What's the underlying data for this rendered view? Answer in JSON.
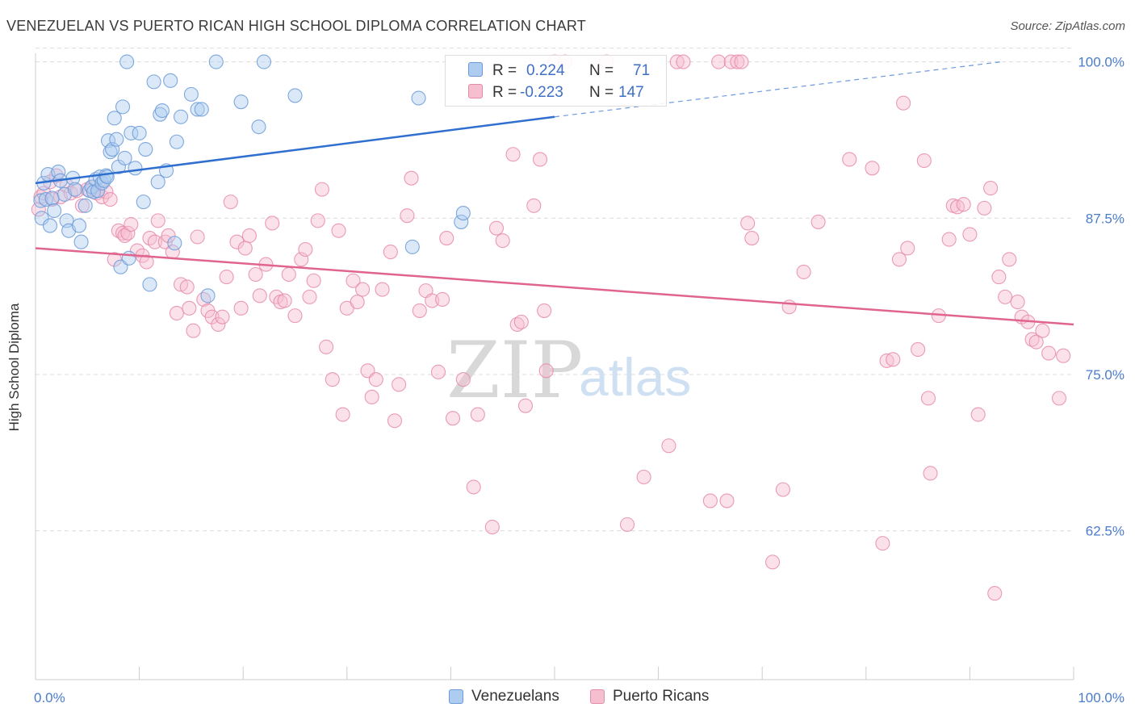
{
  "header": {
    "title": "VENEZUELAN VS PUERTO RICAN HIGH SCHOOL DIPLOMA CORRELATION CHART",
    "source": "Source: ZipAtlas.com"
  },
  "watermark": {
    "zip": "ZIP",
    "atlas": "atlas"
  },
  "colors": {
    "blue_fill": "#aecbf0",
    "blue_stroke": "#6a9ad8",
    "blue_line": "#2f6fcf",
    "pink_fill": "#f6bfd0",
    "pink_stroke": "#e68aaa",
    "pink_line": "#e0658e",
    "grid": "#dcdcdc",
    "axis_label": "#4a7ccc"
  },
  "legend": {
    "rows": [
      {
        "r_label": "R =",
        "r_value": "0.224",
        "n_label": "N =",
        "n_value": "71"
      },
      {
        "r_label": "R =",
        "r_value": "-0.223",
        "n_label": "N =",
        "n_value": "147"
      }
    ]
  },
  "bottom_legend": {
    "items": [
      "Venezuelans",
      "Puerto Ricans"
    ]
  },
  "chart_data": {
    "type": "scatter",
    "title": "VENEZUELAN VS PUERTO RICAN HIGH SCHOOL DIPLOMA CORRELATION CHART",
    "xlabel": "",
    "ylabel": "High School Diploma",
    "xlim": [
      0,
      100
    ],
    "ylim": [
      50.6,
      101.2
    ],
    "x_tick_labels": [
      "0.0%",
      "100.0%"
    ],
    "y_ticks": [
      100.0,
      87.5,
      75.0,
      62.5
    ],
    "y_tick_labels": [
      "100.0%",
      "87.5%",
      "75.0%",
      "62.5%"
    ],
    "grid": true,
    "legend_position": "top-center",
    "series": [
      {
        "name": "Venezuelans",
        "color": "#aecbf0",
        "trend": {
          "x": [
            0,
            50,
            93
          ],
          "y": [
            90.3,
            95.6,
            100.0
          ],
          "solid_until": 50
        },
        "points": [
          [
            0.5,
            88.9
          ],
          [
            0.6,
            87.5
          ],
          [
            0.8,
            90.3
          ],
          [
            1.0,
            89.0
          ],
          [
            1.2,
            91.0
          ],
          [
            1.4,
            86.9
          ],
          [
            1.6,
            89.1
          ],
          [
            1.8,
            88.1
          ],
          [
            2.2,
            91.2
          ],
          [
            2.4,
            90.5
          ],
          [
            2.8,
            89.4
          ],
          [
            3.0,
            87.3
          ],
          [
            3.2,
            86.5
          ],
          [
            3.6,
            90.7
          ],
          [
            3.8,
            89.8
          ],
          [
            4.2,
            86.9
          ],
          [
            4.4,
            85.6
          ],
          [
            4.8,
            88.5
          ],
          [
            5.2,
            89.7
          ],
          [
            5.4,
            90.0
          ],
          [
            5.6,
            89.6
          ],
          [
            5.8,
            90.6
          ],
          [
            6.0,
            89.7
          ],
          [
            6.2,
            90.8
          ],
          [
            6.4,
            90.3
          ],
          [
            6.6,
            90.5
          ],
          [
            6.8,
            90.9
          ],
          [
            6.9,
            90.8
          ],
          [
            7.0,
            93.7
          ],
          [
            7.2,
            92.8
          ],
          [
            7.4,
            93.0
          ],
          [
            7.6,
            95.5
          ],
          [
            7.8,
            93.8
          ],
          [
            8.0,
            91.6
          ],
          [
            8.2,
            83.6
          ],
          [
            8.4,
            96.4
          ],
          [
            8.6,
            92.3
          ],
          [
            8.8,
            100.0
          ],
          [
            9.0,
            84.3
          ],
          [
            9.2,
            94.3
          ],
          [
            9.6,
            91.5
          ],
          [
            10.0,
            94.3
          ],
          [
            10.4,
            88.8
          ],
          [
            10.6,
            93.0
          ],
          [
            11.0,
            82.2
          ],
          [
            11.4,
            98.4
          ],
          [
            11.8,
            90.4
          ],
          [
            12.0,
            95.8
          ],
          [
            12.2,
            96.1
          ],
          [
            12.6,
            91.3
          ],
          [
            13.0,
            98.5
          ],
          [
            13.4,
            85.5
          ],
          [
            13.6,
            93.6
          ],
          [
            14.0,
            95.6
          ],
          [
            15.0,
            97.4
          ],
          [
            15.6,
            96.2
          ],
          [
            16.0,
            96.2
          ],
          [
            16.6,
            81.3
          ],
          [
            17.4,
            100.0
          ],
          [
            19.8,
            96.8
          ],
          [
            21.5,
            94.8
          ],
          [
            22.0,
            100.0
          ],
          [
            25.0,
            97.3
          ],
          [
            36.3,
            85.2
          ],
          [
            36.9,
            97.1
          ],
          [
            41.0,
            87.2
          ],
          [
            41.2,
            87.9
          ]
        ]
      },
      {
        "name": "Puerto Ricans",
        "color": "#f6bfd0",
        "trend": {
          "x": [
            0,
            100
          ],
          "y": [
            85.1,
            79.0
          ]
        },
        "points": [
          [
            0.3,
            88.2
          ],
          [
            0.5,
            89.2
          ],
          [
            0.8,
            89.5
          ],
          [
            1.4,
            90.4
          ],
          [
            1.6,
            89.0
          ],
          [
            2.0,
            90.9
          ],
          [
            2.4,
            89.2
          ],
          [
            3.0,
            90.1
          ],
          [
            3.4,
            89.5
          ],
          [
            4.0,
            89.7
          ],
          [
            4.5,
            88.5
          ],
          [
            5.0,
            89.8
          ],
          [
            5.5,
            90.0
          ],
          [
            5.9,
            89.5
          ],
          [
            6.4,
            89.2
          ],
          [
            6.8,
            89.6
          ],
          [
            7.2,
            89.0
          ],
          [
            7.6,
            84.2
          ],
          [
            8.0,
            86.5
          ],
          [
            8.4,
            86.3
          ],
          [
            8.6,
            86.1
          ],
          [
            8.9,
            86.3
          ],
          [
            9.2,
            87.0
          ],
          [
            9.8,
            84.9
          ],
          [
            10.3,
            84.5
          ],
          [
            10.7,
            84.0
          ],
          [
            11.0,
            85.9
          ],
          [
            11.5,
            85.6
          ],
          [
            11.8,
            87.3
          ],
          [
            12.5,
            85.6
          ],
          [
            12.8,
            86.1
          ],
          [
            13.2,
            84.8
          ],
          [
            13.6,
            79.9
          ],
          [
            14.0,
            82.2
          ],
          [
            14.6,
            82.0
          ],
          [
            14.8,
            80.3
          ],
          [
            15.2,
            78.5
          ],
          [
            15.6,
            86.0
          ],
          [
            16.2,
            81.0
          ],
          [
            16.6,
            80.1
          ],
          [
            17.0,
            79.6
          ],
          [
            17.6,
            79.0
          ],
          [
            18.0,
            79.6
          ],
          [
            18.4,
            82.8
          ],
          [
            18.8,
            88.8
          ],
          [
            19.4,
            85.6
          ],
          [
            19.8,
            80.3
          ],
          [
            20.2,
            85.1
          ],
          [
            20.6,
            86.1
          ],
          [
            21.2,
            83.0
          ],
          [
            21.6,
            81.3
          ],
          [
            22.2,
            83.8
          ],
          [
            22.8,
            87.1
          ],
          [
            23.2,
            81.2
          ],
          [
            23.6,
            80.8
          ],
          [
            24.0,
            80.9
          ],
          [
            24.4,
            83.0
          ],
          [
            25.0,
            79.7
          ],
          [
            25.6,
            84.2
          ],
          [
            26.0,
            85.0
          ],
          [
            26.4,
            81.2
          ],
          [
            26.8,
            82.5
          ],
          [
            27.2,
            87.3
          ],
          [
            27.6,
            89.8
          ],
          [
            28.0,
            77.2
          ],
          [
            28.6,
            74.6
          ],
          [
            29.2,
            86.5
          ],
          [
            29.6,
            71.8
          ],
          [
            30.0,
            80.3
          ],
          [
            30.6,
            82.5
          ],
          [
            31.0,
            80.8
          ],
          [
            31.5,
            81.8
          ],
          [
            32.0,
            75.3
          ],
          [
            32.4,
            73.2
          ],
          [
            32.8,
            74.6
          ],
          [
            33.4,
            81.8
          ],
          [
            34.2,
            84.8
          ],
          [
            34.6,
            71.3
          ],
          [
            35.0,
            74.2
          ],
          [
            35.8,
            87.7
          ],
          [
            36.2,
            90.7
          ],
          [
            37.0,
            80.1
          ],
          [
            37.6,
            81.7
          ],
          [
            38.2,
            80.9
          ],
          [
            38.8,
            75.2
          ],
          [
            39.2,
            81.0
          ],
          [
            39.6,
            85.9
          ],
          [
            40.2,
            71.5
          ],
          [
            41.2,
            74.6
          ],
          [
            42.2,
            66.0
          ],
          [
            42.6,
            71.8
          ],
          [
            44.0,
            62.8
          ],
          [
            44.4,
            86.7
          ],
          [
            45.0,
            85.7
          ],
          [
            46.0,
            92.6
          ],
          [
            46.4,
            79.0
          ],
          [
            46.8,
            79.2
          ],
          [
            47.2,
            72.5
          ],
          [
            48.0,
            88.5
          ],
          [
            48.6,
            92.2
          ],
          [
            49.0,
            80.1
          ],
          [
            49.2,
            75.3
          ],
          [
            50.0,
            100.0
          ],
          [
            51.0,
            100.0
          ],
          [
            55.0,
            100.0
          ],
          [
            57.0,
            63.0
          ],
          [
            58.6,
            66.8
          ],
          [
            61.0,
            69.3
          ],
          [
            61.8,
            100.0
          ],
          [
            62.4,
            100.0
          ],
          [
            65.0,
            64.9
          ],
          [
            65.8,
            100.0
          ],
          [
            66.6,
            64.9
          ],
          [
            67.0,
            100.0
          ],
          [
            67.6,
            100.0
          ],
          [
            68.0,
            100.0
          ],
          [
            68.6,
            87.1
          ],
          [
            69.0,
            85.9
          ],
          [
            71.0,
            60.0
          ],
          [
            72.0,
            65.8
          ],
          [
            72.6,
            80.4
          ],
          [
            74.0,
            83.2
          ],
          [
            75.4,
            87.2
          ],
          [
            78.4,
            92.2
          ],
          [
            80.6,
            91.5
          ],
          [
            81.6,
            61.5
          ],
          [
            82.0,
            76.1
          ],
          [
            82.6,
            76.2
          ],
          [
            83.2,
            84.2
          ],
          [
            83.6,
            96.7
          ],
          [
            84.0,
            85.1
          ],
          [
            85.0,
            77.0
          ],
          [
            85.6,
            92.1
          ],
          [
            86.0,
            73.1
          ],
          [
            86.2,
            67.1
          ],
          [
            87.0,
            79.7
          ],
          [
            88.0,
            85.8
          ],
          [
            88.4,
            88.5
          ],
          [
            88.8,
            88.4
          ],
          [
            89.4,
            88.6
          ],
          [
            90.0,
            86.2
          ],
          [
            90.8,
            71.8
          ],
          [
            91.4,
            88.3
          ],
          [
            92.0,
            89.9
          ],
          [
            92.4,
            57.5
          ],
          [
            92.8,
            82.8
          ],
          [
            93.4,
            81.2
          ],
          [
            93.8,
            84.2
          ],
          [
            94.6,
            80.8
          ],
          [
            95.0,
            79.6
          ],
          [
            95.6,
            79.2
          ],
          [
            96.0,
            77.8
          ],
          [
            96.4,
            77.6
          ],
          [
            97.0,
            78.5
          ],
          [
            97.6,
            76.7
          ],
          [
            98.6,
            73.1
          ],
          [
            99.0,
            76.5
          ]
        ]
      }
    ]
  }
}
